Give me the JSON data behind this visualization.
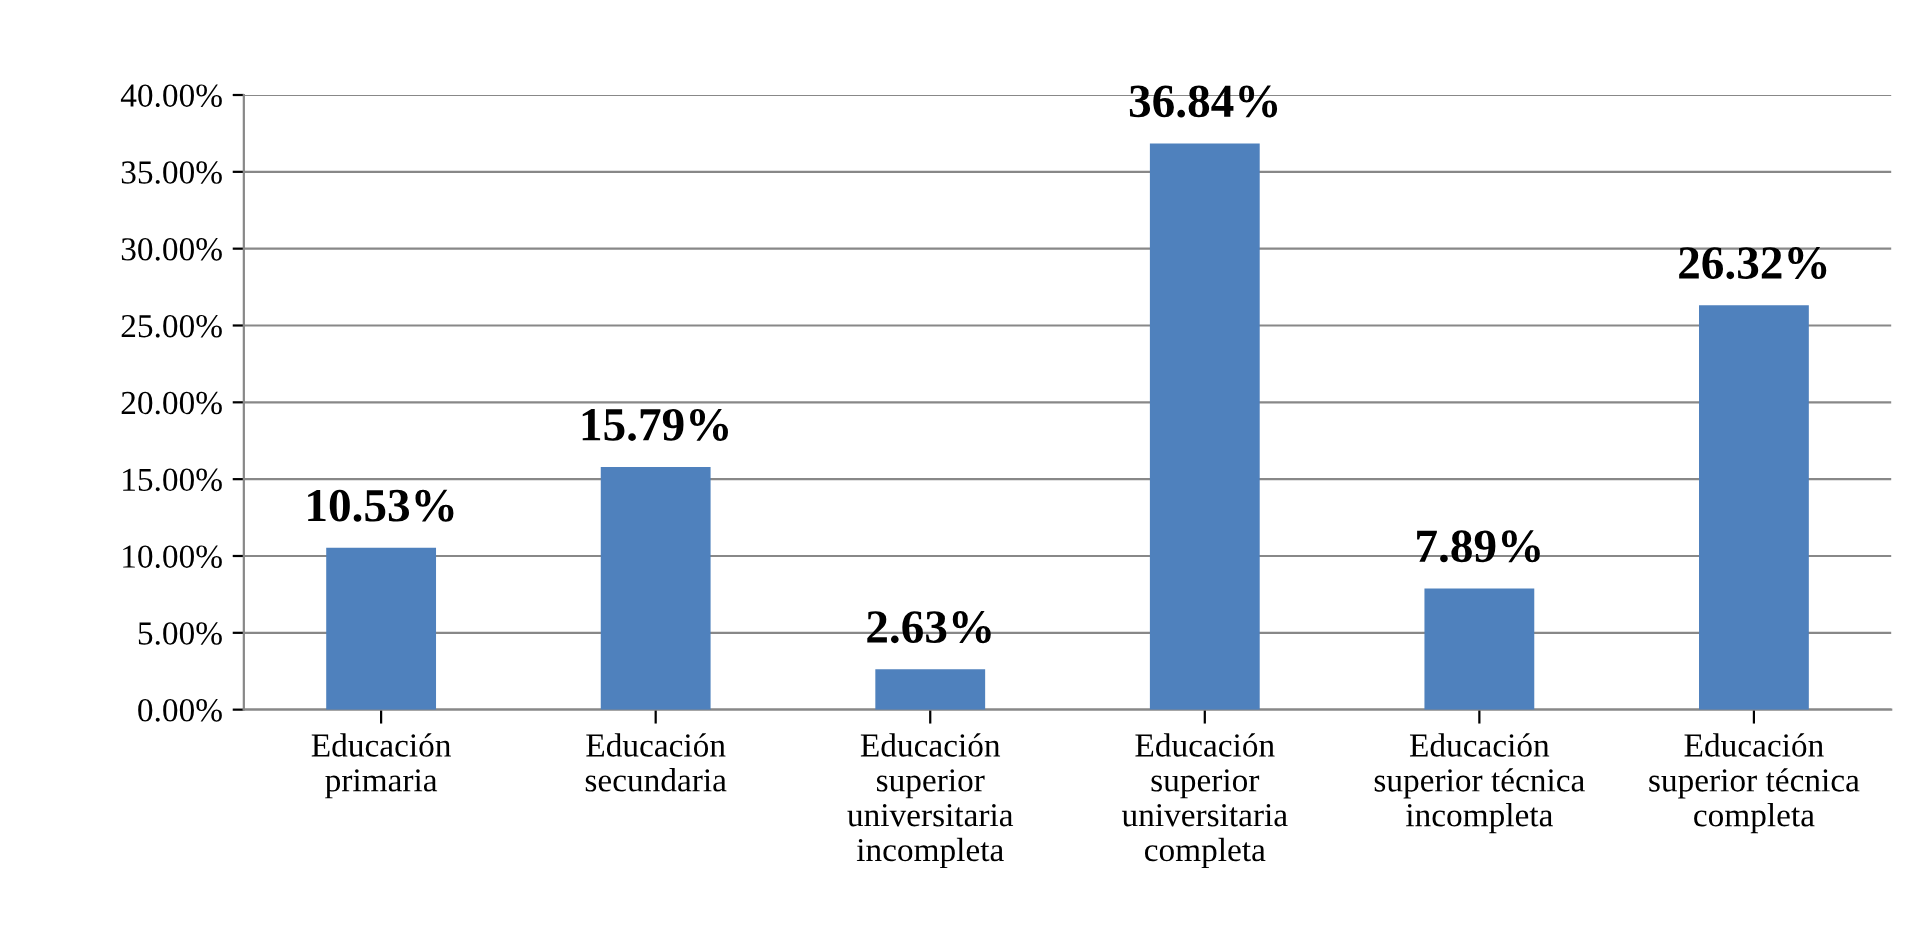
{
  "chart_data": {
    "type": "bar",
    "categories": [
      "Educación\nprimaria",
      "Educación\nsecundaria",
      "Educación\nsuperior\nuniversitaria\nincompleta",
      "Educación\nsuperior\nuniversitaria\ncompleta",
      "Educación\nsuperior técnica\nincompleta",
      "Educación\nsuperior técnica\ncompleta"
    ],
    "values": [
      10.53,
      15.79,
      2.63,
      36.84,
      7.89,
      26.32
    ],
    "value_labels": [
      "10.53%",
      "15.79%",
      "2.63%",
      "36.84%",
      "7.89%",
      "26.32%"
    ],
    "color": "#4f81bd",
    "ylim": [
      0,
      40
    ],
    "yticks": [
      {
        "value": 0,
        "label": "0.00%"
      },
      {
        "value": 5,
        "label": "5.00%"
      },
      {
        "value": 10,
        "label": "10.00%"
      },
      {
        "value": 15,
        "label": "15.00%"
      },
      {
        "value": 20,
        "label": "20.00%"
      },
      {
        "value": 25,
        "label": "25.00%"
      },
      {
        "value": 30,
        "label": "30.00%"
      },
      {
        "value": 35,
        "label": "35.00%"
      },
      {
        "value": 40,
        "label": "40.00%"
      }
    ],
    "grid": "y",
    "legend": false
  }
}
